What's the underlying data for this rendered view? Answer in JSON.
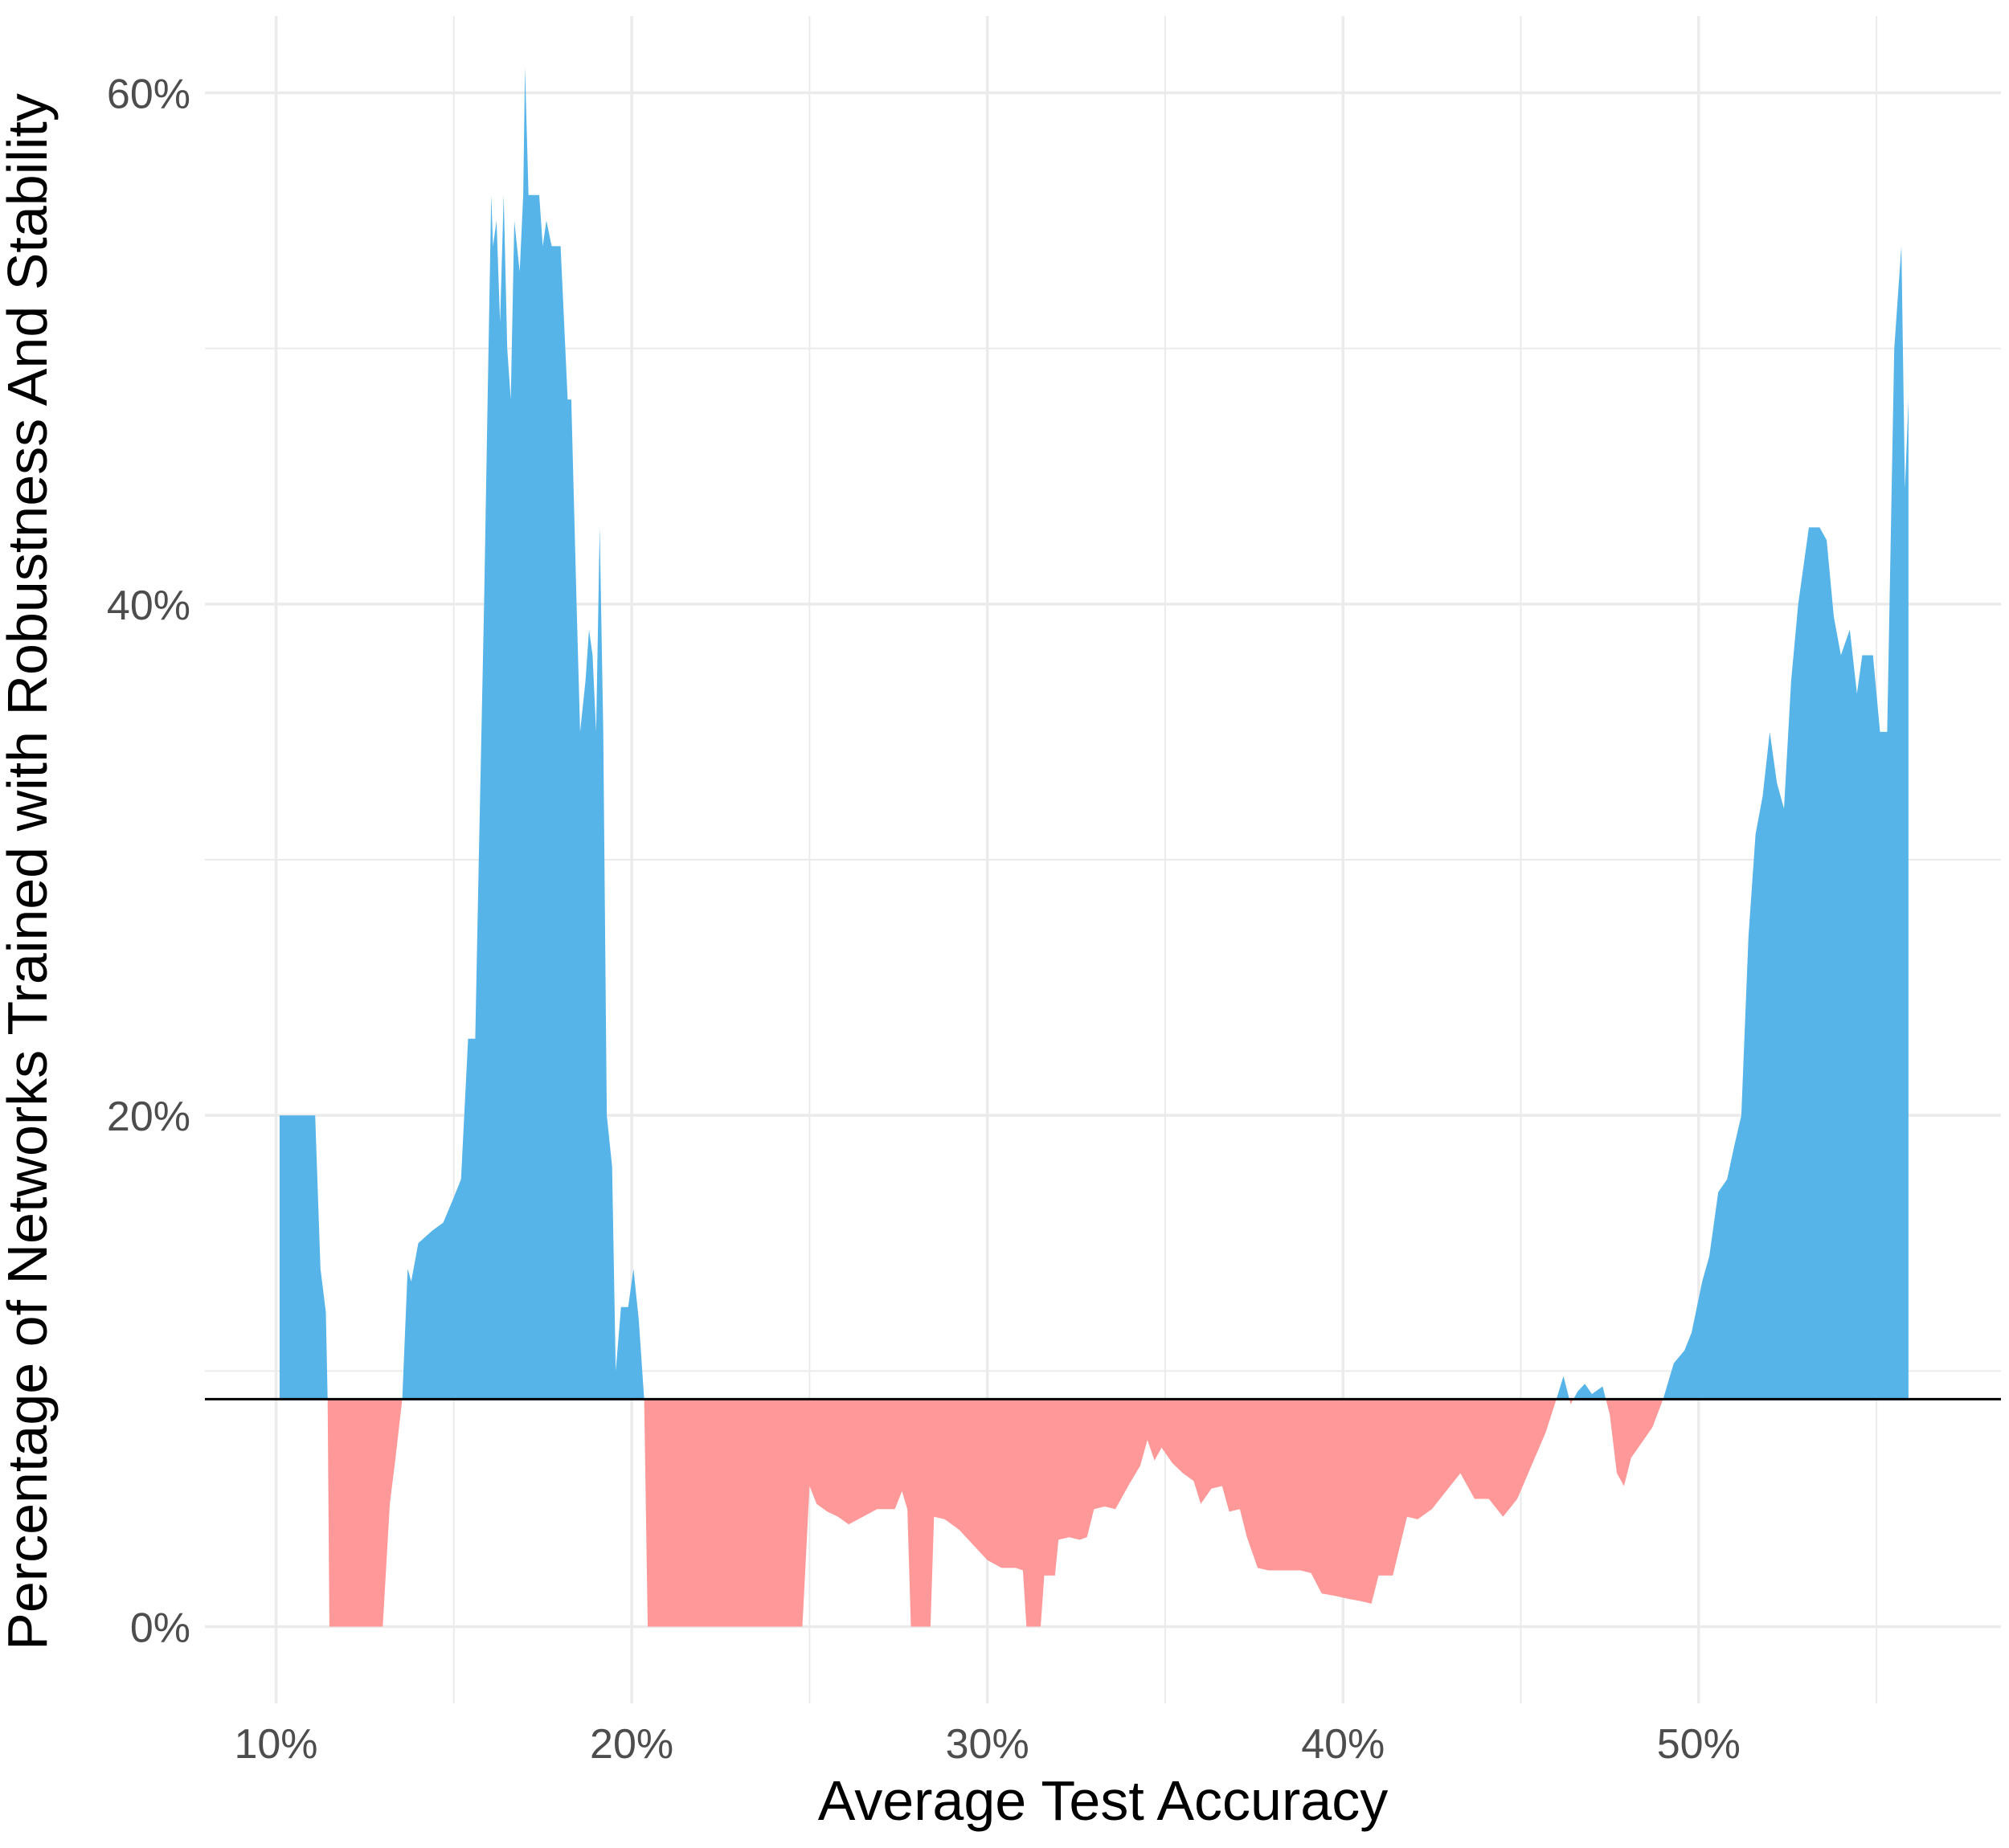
{
  "chart_data": {
    "type": "area",
    "title": "",
    "xlabel": "Average Test Accuracy",
    "ylabel": "Percentage of Networks Trained with Robustness And Stability",
    "xlim": [
      8,
      58.5
    ],
    "ylim": [
      -3,
      63
    ],
    "x_ticks": [
      10,
      20,
      30,
      40,
      50
    ],
    "x_tick_labels": [
      "10%",
      "20%",
      "30%",
      "40%",
      "50%"
    ],
    "y_ticks": [
      0,
      20,
      40,
      60
    ],
    "y_tick_labels": [
      "0%",
      "20%",
      "40%",
      "60%"
    ],
    "baseline": 8.9,
    "grid": true,
    "legend": "none",
    "colors": {
      "above": "#56B4E9",
      "below": "#FF9999",
      "baseline": "#000000",
      "grid": "#EBEBEB",
      "tick_text": "#4D4D4D"
    },
    "points": [
      [
        10.1,
        20.0
      ],
      [
        11.1,
        20.0
      ],
      [
        11.25,
        14.0
      ],
      [
        11.4,
        12.3
      ],
      [
        11.45,
        8.9
      ],
      [
        11.5,
        0.0
      ],
      [
        13.0,
        0.0
      ],
      [
        13.2,
        4.8
      ],
      [
        13.35,
        6.5
      ],
      [
        13.55,
        8.9
      ],
      [
        13.7,
        14.0
      ],
      [
        13.8,
        13.5
      ],
      [
        14.0,
        15.0
      ],
      [
        14.4,
        15.5
      ],
      [
        14.7,
        15.8
      ],
      [
        15.0,
        16.8
      ],
      [
        15.2,
        17.5
      ],
      [
        15.4,
        23.0
      ],
      [
        15.6,
        23.0
      ],
      [
        15.7,
        30.0
      ],
      [
        15.85,
        40.0
      ],
      [
        15.95,
        48.0
      ],
      [
        16.05,
        56.0
      ],
      [
        16.1,
        54.0
      ],
      [
        16.2,
        55.0
      ],
      [
        16.3,
        51.0
      ],
      [
        16.4,
        56.0
      ],
      [
        16.5,
        50.0
      ],
      [
        16.6,
        48.0
      ],
      [
        16.7,
        55.0
      ],
      [
        16.85,
        53.0
      ],
      [
        16.95,
        56.0
      ],
      [
        17.0,
        61.0
      ],
      [
        17.1,
        56.0
      ],
      [
        17.4,
        56.0
      ],
      [
        17.5,
        54.0
      ],
      [
        17.6,
        55.0
      ],
      [
        17.75,
        54.0
      ],
      [
        17.9,
        54.0
      ],
      [
        18.0,
        54.0
      ],
      [
        18.2,
        48.0
      ],
      [
        18.3,
        48.0
      ],
      [
        18.45,
        40.0
      ],
      [
        18.55,
        35.0
      ],
      [
        18.7,
        37.0
      ],
      [
        18.8,
        39.0
      ],
      [
        18.9,
        38.0
      ],
      [
        19.0,
        35.0
      ],
      [
        19.1,
        43.0
      ],
      [
        19.2,
        35.0
      ],
      [
        19.3,
        20.0
      ],
      [
        19.45,
        18.0
      ],
      [
        19.55,
        10.0
      ],
      [
        19.7,
        12.5
      ],
      [
        19.9,
        12.5
      ],
      [
        20.05,
        14.0
      ],
      [
        20.2,
        12.0
      ],
      [
        20.35,
        8.9
      ],
      [
        20.45,
        0.0
      ],
      [
        24.8,
        0.0
      ],
      [
        25.0,
        5.5
      ],
      [
        25.2,
        4.8
      ],
      [
        25.5,
        4.5
      ],
      [
        25.8,
        4.3
      ],
      [
        26.1,
        4.0
      ],
      [
        26.5,
        4.3
      ],
      [
        26.9,
        4.6
      ],
      [
        27.4,
        4.6
      ],
      [
        27.6,
        5.3
      ],
      [
        27.75,
        4.6
      ],
      [
        27.85,
        0.0
      ],
      [
        28.4,
        0.0
      ],
      [
        28.5,
        4.3
      ],
      [
        28.8,
        4.2
      ],
      [
        29.2,
        3.8
      ],
      [
        29.6,
        3.2
      ],
      [
        30.0,
        2.6
      ],
      [
        30.4,
        2.3
      ],
      [
        30.8,
        2.3
      ],
      [
        31.0,
        2.2
      ],
      [
        31.1,
        0.0
      ],
      [
        31.5,
        0.0
      ],
      [
        31.6,
        2.0
      ],
      [
        31.9,
        2.0
      ],
      [
        32.0,
        3.4
      ],
      [
        32.3,
        3.5
      ],
      [
        32.6,
        3.4
      ],
      [
        32.8,
        3.5
      ],
      [
        33.0,
        4.6
      ],
      [
        33.3,
        4.7
      ],
      [
        33.6,
        4.6
      ],
      [
        34.0,
        5.6
      ],
      [
        34.3,
        6.3
      ],
      [
        34.5,
        7.3
      ],
      [
        34.7,
        6.5
      ],
      [
        34.9,
        7.0
      ],
      [
        35.2,
        6.4
      ],
      [
        35.5,
        6.0
      ],
      [
        35.8,
        5.7
      ],
      [
        36.0,
        4.8
      ],
      [
        36.3,
        5.4
      ],
      [
        36.6,
        5.5
      ],
      [
        36.8,
        4.5
      ],
      [
        37.1,
        4.6
      ],
      [
        37.3,
        3.5
      ],
      [
        37.6,
        2.3
      ],
      [
        37.9,
        2.2
      ],
      [
        38.2,
        2.2
      ],
      [
        38.5,
        2.2
      ],
      [
        38.8,
        2.2
      ],
      [
        39.1,
        2.1
      ],
      [
        39.4,
        1.3
      ],
      [
        39.8,
        1.2
      ],
      [
        40.1,
        1.1
      ],
      [
        40.5,
        1.0
      ],
      [
        40.8,
        0.9
      ],
      [
        41.0,
        2.0
      ],
      [
        41.4,
        2.0
      ],
      [
        41.8,
        4.3
      ],
      [
        42.1,
        4.2
      ],
      [
        42.5,
        4.6
      ],
      [
        42.9,
        5.3
      ],
      [
        43.3,
        6.0
      ],
      [
        43.7,
        5.0
      ],
      [
        44.1,
        5.0
      ],
      [
        44.5,
        4.3
      ],
      [
        44.9,
        5.0
      ],
      [
        45.3,
        6.3
      ],
      [
        45.7,
        7.6
      ],
      [
        46.0,
        8.9
      ],
      [
        46.2,
        9.8
      ],
      [
        46.4,
        8.7
      ],
      [
        46.6,
        9.2
      ],
      [
        46.8,
        9.5
      ],
      [
        47.0,
        9.1
      ],
      [
        47.3,
        9.4
      ],
      [
        47.5,
        8.3
      ],
      [
        47.7,
        6.0
      ],
      [
        47.9,
        5.5
      ],
      [
        48.1,
        6.6
      ],
      [
        48.4,
        7.2
      ],
      [
        48.7,
        7.8
      ],
      [
        49.0,
        8.9
      ],
      [
        49.3,
        10.3
      ],
      [
        49.6,
        10.8
      ],
      [
        49.8,
        11.5
      ],
      [
        50.1,
        13.5
      ],
      [
        50.3,
        14.5
      ],
      [
        50.55,
        17.0
      ],
      [
        50.8,
        17.5
      ],
      [
        51.0,
        18.8
      ],
      [
        51.2,
        20.0
      ],
      [
        51.4,
        27.0
      ],
      [
        51.6,
        31.0
      ],
      [
        51.8,
        32.5
      ],
      [
        52.0,
        35.0
      ],
      [
        52.2,
        33.0
      ],
      [
        52.4,
        32.0
      ],
      [
        52.6,
        37.0
      ],
      [
        52.8,
        40.0
      ],
      [
        53.1,
        43.0
      ],
      [
        53.4,
        43.0
      ],
      [
        53.6,
        42.5
      ],
      [
        53.8,
        39.5
      ],
      [
        54.0,
        38.0
      ],
      [
        54.25,
        39.0
      ],
      [
        54.45,
        36.5
      ],
      [
        54.6,
        38.0
      ],
      [
        54.9,
        38.0
      ],
      [
        55.1,
        35.0
      ],
      [
        55.3,
        35.0
      ],
      [
        55.5,
        50.0
      ],
      [
        55.7,
        54.0
      ],
      [
        55.8,
        44.5
      ],
      [
        55.9,
        48.0
      ]
    ]
  }
}
